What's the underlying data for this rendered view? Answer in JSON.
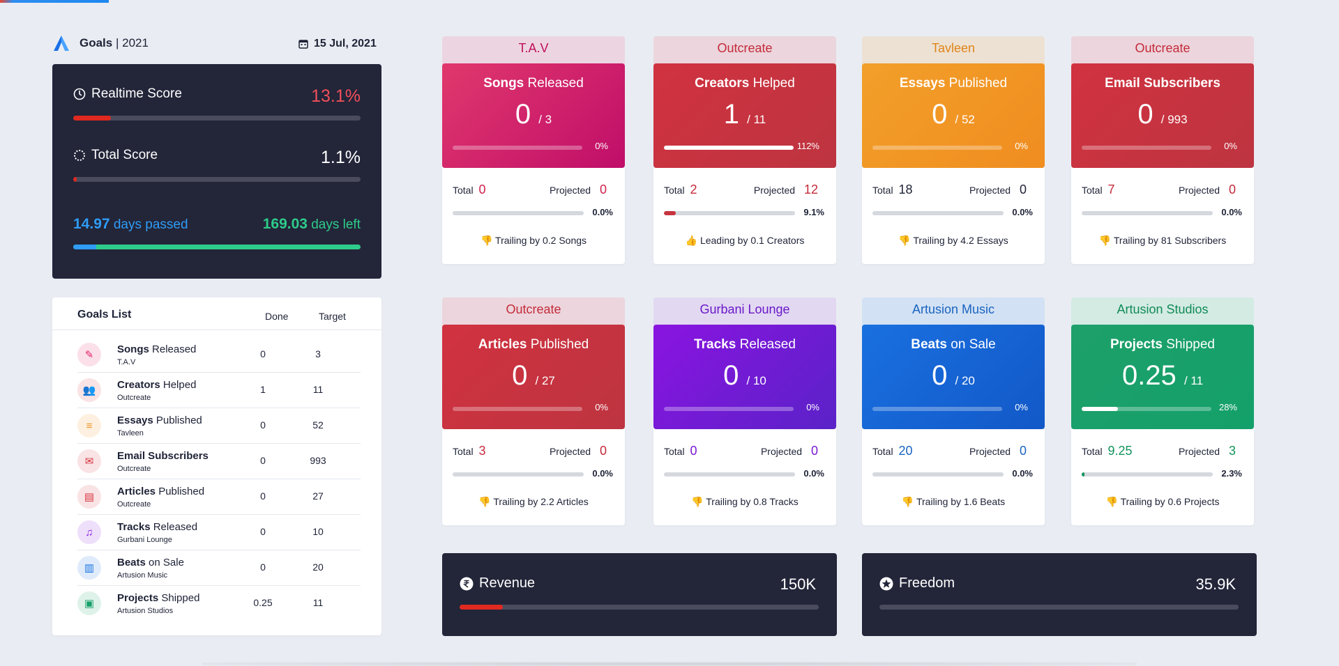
{
  "header": {
    "title_bold": "Goals",
    "title_sep": "|",
    "year": "2021",
    "date": "15 Jul, 2021"
  },
  "score": {
    "realtime_label": "Realtime Score",
    "realtime_value": "13.1%",
    "total_label": "Total Score",
    "total_value": "1.1%",
    "days_passed_value": "14.97",
    "days_passed_label": "days passed",
    "days_left_value": "169.03",
    "days_left_label": "days left"
  },
  "goals_list": {
    "title": "Goals List",
    "col_done": "Done",
    "col_target": "Target",
    "items": [
      {
        "bold": "Songs",
        "rest": "Released",
        "sub": "T.A.V",
        "done": "0",
        "target": "3",
        "icon": "pen-icon",
        "color": "#e0226a"
      },
      {
        "bold": "Creators",
        "rest": "Helped",
        "sub": "Outcreate",
        "done": "1",
        "target": "11",
        "icon": "users-icon",
        "color": "#d83743"
      },
      {
        "bold": "Essays",
        "rest": "Published",
        "sub": "Tavleen",
        "done": "0",
        "target": "52",
        "icon": "text-lines-icon",
        "color": "#f09425"
      },
      {
        "bold": "Email Subscribers",
        "rest": "",
        "sub": "Outcreate",
        "done": "0",
        "target": "993",
        "icon": "mailbox-icon",
        "color": "#d83743"
      },
      {
        "bold": "Articles",
        "rest": "Published",
        "sub": "Outcreate",
        "done": "0",
        "target": "27",
        "icon": "newspaper-icon",
        "color": "#d83743"
      },
      {
        "bold": "Tracks",
        "rest": "Released",
        "sub": "Gurbani Lounge",
        "done": "0",
        "target": "10",
        "icon": "music-list-icon",
        "color": "#8a1ee0"
      },
      {
        "bold": "Beats",
        "rest": "on Sale",
        "sub": "Artusion Music",
        "done": "0",
        "target": "20",
        "icon": "piano-icon",
        "color": "#1973e0"
      },
      {
        "bold": "Projects",
        "rest": "Shipped",
        "sub": "Artusion Studios",
        "done": "0.25",
        "target": "11",
        "icon": "presentation-icon",
        "color": "#18a06a"
      }
    ]
  },
  "cards": [
    {
      "tab": "T.A.V",
      "bold": "Songs",
      "rest": "Released",
      "value": "0",
      "target": "/ 3",
      "progress_label": "0%",
      "progress": 0,
      "total": "0",
      "projected": "0",
      "pct": "0.0%",
      "bar2": 0,
      "trail": "Trailing by 0.2 Songs",
      "trail_icon": "thumbs-down-icon",
      "tab_bg": "#ecd5e1",
      "tab_color": "#c0105a",
      "grad": "linear-gradient(135deg,#e0386c,#c00e6a)",
      "num_color": "#d0204c",
      "bar_color": "#d83743"
    },
    {
      "tab": "Outcreate",
      "bold": "Creators",
      "rest": "Helped",
      "value": "1",
      "target": "/ 11",
      "progress_label": "112%",
      "progress": 1.12,
      "total": "2",
      "projected": "12",
      "pct": "9.1%",
      "bar2": 0.091,
      "trail": "Leading by 0.1 Creators",
      "trail_icon": "thumbs-up-icon",
      "tab_bg": "#ecd5dc",
      "tab_color": "#c42a3a",
      "grad": "linear-gradient(135deg,#d13240,#bd3440)",
      "num_color": "#c42a3a",
      "bar_color": "#c6343f"
    },
    {
      "tab": "Tavleen",
      "bold": "Essays",
      "rest": "Published",
      "value": "0",
      "target": "/ 52",
      "progress_label": "0%",
      "progress": 0,
      "total": "18",
      "projected": "0",
      "pct": "0.0%",
      "bar2": 0,
      "trail": "Trailing by 4.2 Essays",
      "trail_icon": "thumbs-down-icon",
      "tab_bg": "#ede1d4",
      "tab_color": "#e08518",
      "grad": "linear-gradient(135deg,#f29f2a,#f08d20)",
      "num_color": "#1d2236",
      "bar_color": "#f08d20"
    },
    {
      "tab": "Outcreate",
      "bold": "Email Subscribers",
      "rest": "",
      "value": "0",
      "target": "/ 993",
      "progress_label": "0%",
      "progress": 0,
      "total": "7",
      "projected": "0",
      "pct": "0.0%",
      "bar2": 0,
      "trail": "Trailing by 81 Subscribers",
      "trail_icon": "thumbs-down-icon",
      "tab_bg": "#ecd5dc",
      "tab_color": "#c42a3a",
      "grad": "linear-gradient(135deg,#d13240,#bd3440)",
      "num_color": "#c42a3a",
      "bar_color": "#c6343f"
    },
    {
      "tab": "Outcreate",
      "bold": "Articles",
      "rest": "Published",
      "value": "0",
      "target": "/ 27",
      "progress_label": "0%",
      "progress": 0,
      "total": "3",
      "projected": "0",
      "pct": "0.0%",
      "bar2": 0,
      "trail": "Trailing by 2.2 Articles",
      "trail_icon": "thumbs-down-icon",
      "tab_bg": "#ecd5dc",
      "tab_color": "#c42a3a",
      "grad": "linear-gradient(135deg,#d13240,#bd3440)",
      "num_color": "#c42a3a",
      "bar_color": "#c6343f"
    },
    {
      "tab": "Gurbani Lounge",
      "bold": "Tracks",
      "rest": "Released",
      "value": "0",
      "target": "/ 10",
      "progress_label": "0%",
      "progress": 0,
      "total": "0",
      "projected": "0",
      "pct": "0.0%",
      "bar2": 0,
      "trail": "Trailing by 0.8 Tracks",
      "trail_icon": "thumbs-down-icon",
      "tab_bg": "#e2d8f2",
      "tab_color": "#6a18c8",
      "grad": "linear-gradient(135deg,#8a14e0,#5a22c8)",
      "num_color": "#7a18d0",
      "bar_color": "#7a18d0"
    },
    {
      "tab": "Artusion Music",
      "bold": "Beats",
      "rest": "on Sale",
      "value": "0",
      "target": "/ 20",
      "progress_label": "0%",
      "progress": 0,
      "total": "20",
      "projected": "0",
      "pct": "0.0%",
      "bar2": 0,
      "trail": "Trailing by 1.6 Beats",
      "trail_icon": "thumbs-down-icon",
      "tab_bg": "#d2e1f3",
      "tab_color": "#1a64c0",
      "grad": "linear-gradient(135deg,#1a70e0,#1258c8)",
      "num_color": "#1a64c0",
      "bar_color": "#1a64c0"
    },
    {
      "tab": "Artusion Studios",
      "bold": "Projects",
      "rest": "Shipped",
      "value": "0.25",
      "target": "/ 11",
      "progress_label": "28%",
      "progress": 0.28,
      "total": "9.25",
      "projected": "3",
      "pct": "2.3%",
      "bar2": 0.023,
      "trail": "Trailing by 0.6 Projects",
      "trail_icon": "thumbs-down-icon",
      "tab_bg": "#d3ebe3",
      "tab_color": "#128a58",
      "grad": "linear-gradient(135deg,#1ea06a,#14a06a)",
      "num_color": "#12945c",
      "bar_color": "#12945c"
    }
  ],
  "metrics": {
    "revenue": {
      "label": "Revenue",
      "value": "150K",
      "progress": 0.12,
      "icon": "rupee-icon"
    },
    "freedom": {
      "label": "Freedom",
      "value": "35.9K",
      "progress": 0,
      "icon": "star-icon"
    }
  }
}
